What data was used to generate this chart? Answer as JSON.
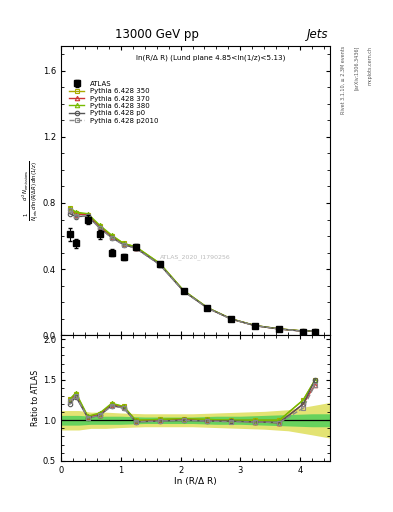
{
  "title": "13000 GeV pp",
  "title_right": "Jets",
  "annotation": "ln(R/Δ R) (Lund plane 4.85<ln(1/z)<5.13)",
  "watermark": "ATLAS_2020_I1790256",
  "ylabel_main": "$\\frac{1}{N_{\\rm jets}}\\frac{d^2 N_{\\rm emissions}}{d\\ln(R/\\Delta R)\\,d\\ln(1/z)}$",
  "ylabel_ratio": "Ratio to ATLAS",
  "xlabel": "ln (R/Δ R)",
  "right_label_top": "Rivet 3.1.10, ≥ 2.3M events",
  "right_label_mid": "[arXiv:1306.3436]",
  "right_label_bot": "mcplots.cern.ch",
  "xlim": [
    0,
    4.5
  ],
  "ylim_main": [
    0,
    1.75
  ],
  "ylim_ratio": [
    0.5,
    2.05
  ],
  "atlas_x": [
    0.15,
    0.25,
    0.45,
    0.65,
    0.85,
    1.05,
    1.25,
    1.65,
    2.05,
    2.45,
    2.85,
    3.25,
    3.65,
    4.05,
    4.25
  ],
  "atlas_y": [
    0.61,
    0.555,
    0.7,
    0.61,
    0.5,
    0.475,
    0.535,
    0.43,
    0.265,
    0.165,
    0.098,
    0.058,
    0.038,
    0.02,
    0.018
  ],
  "atlas_yerr": [
    0.04,
    0.03,
    0.025,
    0.025,
    0.02,
    0.018,
    0.018,
    0.015,
    0.01,
    0.008,
    0.005,
    0.004,
    0.003,
    0.002,
    0.002
  ],
  "mc_x": [
    0.15,
    0.25,
    0.45,
    0.65,
    0.85,
    1.05,
    1.25,
    1.65,
    2.05,
    2.45,
    2.85,
    3.25,
    3.65,
    4.05,
    4.25
  ],
  "p350_y": [
    0.77,
    0.74,
    0.73,
    0.66,
    0.6,
    0.555,
    0.535,
    0.435,
    0.27,
    0.166,
    0.098,
    0.058,
    0.038,
    0.025,
    0.027
  ],
  "p370_y": [
    0.76,
    0.73,
    0.73,
    0.655,
    0.595,
    0.55,
    0.53,
    0.432,
    0.268,
    0.165,
    0.097,
    0.057,
    0.037,
    0.024,
    0.026
  ],
  "p380_y": [
    0.77,
    0.745,
    0.735,
    0.665,
    0.605,
    0.555,
    0.535,
    0.436,
    0.271,
    0.167,
    0.098,
    0.058,
    0.038,
    0.025,
    0.027
  ],
  "pp0_y": [
    0.735,
    0.718,
    0.72,
    0.648,
    0.59,
    0.547,
    0.527,
    0.428,
    0.266,
    0.164,
    0.097,
    0.057,
    0.037,
    0.024,
    0.027
  ],
  "pp2010_y": [
    0.758,
    0.722,
    0.721,
    0.647,
    0.589,
    0.546,
    0.526,
    0.427,
    0.265,
    0.163,
    0.096,
    0.057,
    0.037,
    0.023,
    0.026
  ],
  "p350_ratio": [
    1.26,
    1.33,
    1.04,
    1.08,
    1.2,
    1.17,
    1.0,
    1.01,
    1.02,
    1.01,
    1.0,
    1.0,
    1.0,
    1.25,
    1.5
  ],
  "p370_ratio": [
    1.25,
    1.31,
    1.04,
    1.07,
    1.19,
    1.16,
    0.99,
    1.0,
    1.01,
    1.0,
    0.99,
    0.98,
    0.97,
    1.2,
    1.44
  ],
  "p380_ratio": [
    1.26,
    1.34,
    1.05,
    1.09,
    1.21,
    1.17,
    1.0,
    1.01,
    1.02,
    1.01,
    1.0,
    1.0,
    1.0,
    1.25,
    1.5
  ],
  "pp0_ratio": [
    1.2,
    1.29,
    1.03,
    1.06,
    1.18,
    1.15,
    0.98,
    0.99,
    1.0,
    0.99,
    0.99,
    0.98,
    0.97,
    1.2,
    1.5
  ],
  "pp2010_ratio": [
    1.24,
    1.3,
    1.03,
    1.06,
    1.18,
    1.15,
    0.98,
    0.99,
    1.0,
    0.99,
    0.98,
    0.98,
    0.97,
    1.15,
    1.44
  ],
  "band_x": [
    0.0,
    0.3,
    0.5,
    0.75,
    1.0,
    1.4,
    1.8,
    2.2,
    2.6,
    3.0,
    3.4,
    3.8,
    4.2,
    4.5
  ],
  "stat_lo": [
    0.94,
    0.94,
    0.95,
    0.95,
    0.95,
    0.96,
    0.96,
    0.96,
    0.95,
    0.95,
    0.94,
    0.93,
    0.92,
    0.92
  ],
  "stat_hi": [
    1.06,
    1.06,
    1.05,
    1.05,
    1.05,
    1.04,
    1.04,
    1.04,
    1.05,
    1.05,
    1.06,
    1.07,
    1.08,
    1.08
  ],
  "sys_lo": [
    0.88,
    0.88,
    0.9,
    0.9,
    0.91,
    0.92,
    0.92,
    0.92,
    0.91,
    0.9,
    0.89,
    0.87,
    0.82,
    0.78
  ],
  "sys_hi": [
    1.12,
    1.12,
    1.1,
    1.1,
    1.09,
    1.08,
    1.08,
    1.08,
    1.09,
    1.1,
    1.11,
    1.13,
    1.18,
    1.22
  ],
  "color_p350": "#aaaa00",
  "color_p370": "#cc3333",
  "color_p380": "#77bb00",
  "color_pp0": "#555555",
  "color_pp2010": "#888888",
  "color_stat_band": "#33cc55",
  "color_sys_band": "#cccc00"
}
